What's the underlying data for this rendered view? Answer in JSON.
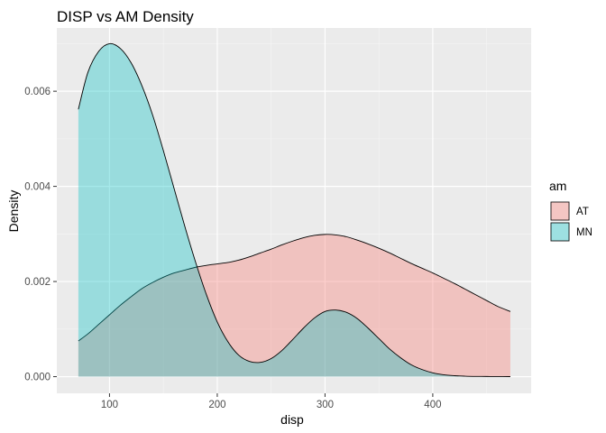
{
  "chart_data": {
    "type": "area",
    "title": "DISP vs AM Density",
    "xlabel": "disp",
    "ylabel": "Density",
    "xlim": [
      51.1,
      491.3
    ],
    "ylim": [
      -0.00035,
      0.00733
    ],
    "x_ticks": [
      100,
      200,
      300,
      400
    ],
    "x_tick_labels": [
      "100",
      "200",
      "300",
      "400"
    ],
    "y_ticks": [
      0,
      0.002,
      0.004,
      0.006
    ],
    "y_tick_labels": [
      "0.000",
      "0.002",
      "0.004",
      "0.006"
    ],
    "grid": true,
    "legend": {
      "title": "am",
      "position": "right",
      "entries": [
        "AT",
        "MN"
      ]
    },
    "series": [
      {
        "name": "AT",
        "color": "#F8766D",
        "fill_opacity": 0.35,
        "x": [
          71.1,
          80,
          90,
          100,
          110,
          120,
          130,
          140,
          150,
          160,
          170,
          180,
          190,
          200,
          210,
          220,
          230,
          240,
          250,
          260,
          270,
          280,
          290,
          300,
          310,
          320,
          330,
          340,
          350,
          360,
          370,
          380,
          390,
          400,
          410,
          420,
          430,
          440,
          450,
          460,
          472
        ],
        "y": [
          0.00075,
          0.0009,
          0.0011,
          0.0013,
          0.0015,
          0.00168,
          0.00185,
          0.00198,
          0.00209,
          0.00218,
          0.00224,
          0.0023,
          0.00234,
          0.00237,
          0.0024,
          0.00245,
          0.00252,
          0.0026,
          0.00268,
          0.00277,
          0.00285,
          0.00292,
          0.00297,
          0.00299,
          0.00298,
          0.00294,
          0.00287,
          0.00279,
          0.0027,
          0.0026,
          0.00249,
          0.00238,
          0.00228,
          0.00218,
          0.00207,
          0.00196,
          0.00184,
          0.00172,
          0.0016,
          0.00148,
          0.00137
        ]
      },
      {
        "name": "MN",
        "color": "#00BFC4",
        "fill_opacity": 0.35,
        "x": [
          71.1,
          80,
          90,
          100,
          110,
          120,
          130,
          140,
          150,
          160,
          170,
          180,
          190,
          200,
          210,
          220,
          230,
          240,
          250,
          260,
          270,
          280,
          290,
          300,
          310,
          320,
          330,
          340,
          350,
          360,
          370,
          380,
          390,
          400,
          410,
          420,
          430,
          440,
          450,
          460,
          472
        ],
        "y": [
          0.00562,
          0.0064,
          0.00684,
          0.007,
          0.0069,
          0.0066,
          0.00612,
          0.0055,
          0.00475,
          0.00395,
          0.00315,
          0.0024,
          0.00172,
          0.00115,
          0.00073,
          0.00045,
          0.00032,
          0.0003,
          0.00038,
          0.00055,
          0.00078,
          0.00102,
          0.00123,
          0.00137,
          0.0014,
          0.00135,
          0.00122,
          0.00102,
          0.0008,
          0.00058,
          0.0004,
          0.00025,
          0.00015,
          8e-05,
          4e-05,
          2e-05,
          1e-05,
          5e-06,
          3e-06,
          2e-06,
          1e-06
        ]
      }
    ]
  }
}
